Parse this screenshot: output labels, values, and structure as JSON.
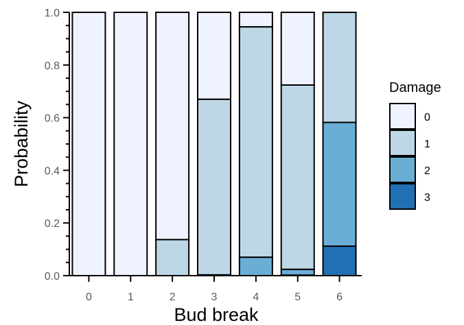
{
  "chart_data": {
    "type": "bar",
    "stacked": true,
    "xlabel": "Bud break",
    "ylabel": "Probability",
    "ylim": [
      0,
      1
    ],
    "yticks": [
      "0.0",
      "0.2",
      "0.4",
      "0.6",
      "0.8",
      "1.0"
    ],
    "categories": [
      "0",
      "1",
      "2",
      "3",
      "4",
      "5",
      "6"
    ],
    "legend": {
      "title": "Damage",
      "position": "right"
    },
    "series": [
      {
        "name": "3",
        "color": "#2170b5",
        "values": [
          0,
          0,
          0,
          0,
          0,
          0.002,
          0.112
        ]
      },
      {
        "name": "2",
        "color": "#6aaed6",
        "values": [
          0,
          0,
          0,
          0.003,
          0.07,
          0.022,
          0.47
        ]
      },
      {
        "name": "1",
        "color": "#bdd7e6",
        "values": [
          0,
          0,
          0.137,
          0.667,
          0.875,
          0.7,
          0.418
        ]
      },
      {
        "name": "0",
        "color": "#eff3ff",
        "values": [
          1,
          1,
          0.863,
          0.33,
          0.055,
          0.276,
          0
        ]
      }
    ],
    "legend_order": [
      "0",
      "1",
      "2",
      "3"
    ]
  }
}
